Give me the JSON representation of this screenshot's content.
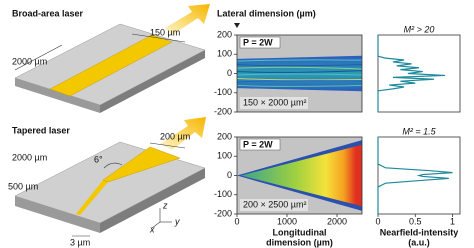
{
  "diagram": {
    "broad_title": "Broad-area laser",
    "broad_width": "150 µm",
    "broad_length": "2000 µm",
    "tapered_title": "Tapered laser",
    "taper_width": "200 µm",
    "tapered_length": "2000 µm",
    "ridge_length": "500 µm",
    "taper_angle": "6°",
    "ridge_width": "3 µm",
    "axes": [
      "x",
      "y",
      "z"
    ]
  },
  "chart_data": [
    {
      "type": "heatmap",
      "title": "P = 2W",
      "ylabel": "Lateral dimension (µm)",
      "annotation": "150 × 2000 µm²",
      "ylim": [
        -200,
        200
      ],
      "yticks": [
        200,
        100,
        0,
        -100,
        -200
      ]
    },
    {
      "type": "line",
      "title": "M² > 20",
      "color": "#1d8a9c",
      "xlim": [
        0,
        1.1
      ],
      "ylim": [
        -200,
        200
      ],
      "positions": [
        -200,
        -90,
        -80,
        -70,
        -60,
        -50,
        -40,
        -30,
        -20,
        -10,
        0,
        10,
        20,
        30,
        40,
        50,
        60,
        70,
        80,
        90,
        200
      ],
      "values": [
        0,
        0,
        0.2,
        0.35,
        0.15,
        0.5,
        0.3,
        0.75,
        0.2,
        0.9,
        0.4,
        0.6,
        0.3,
        0.55,
        0.25,
        0.45,
        0.2,
        0.35,
        0.1,
        0,
        0
      ]
    },
    {
      "type": "heatmap",
      "title": "P = 2W",
      "annotation": "200 × 2500 µm²",
      "xlabel": [
        "Longitudinal",
        "dimension (µm)"
      ],
      "xlim": [
        0,
        2500
      ],
      "xticks": [
        0,
        1000,
        2000
      ],
      "ylim": [
        -200,
        200
      ],
      "yticks": [
        200,
        100,
        0,
        -100,
        -200
      ]
    },
    {
      "type": "line",
      "title": "M² = 1.5",
      "color": "#1d8a9c",
      "xlabel": [
        "Nearfield-intensity",
        "(a.u.)"
      ],
      "xlim": [
        0,
        1.1
      ],
      "xticks": [
        0,
        0.5,
        1
      ],
      "ylim": [
        -200,
        200
      ],
      "positions": [
        -200,
        -60,
        -40,
        -25,
        -15,
        -5,
        0,
        5,
        15,
        25,
        40,
        60,
        200
      ],
      "values": [
        0,
        0,
        0.1,
        0.6,
        0.95,
        0.6,
        0.55,
        0.6,
        1.0,
        0.7,
        0.1,
        0,
        0
      ]
    }
  ]
}
